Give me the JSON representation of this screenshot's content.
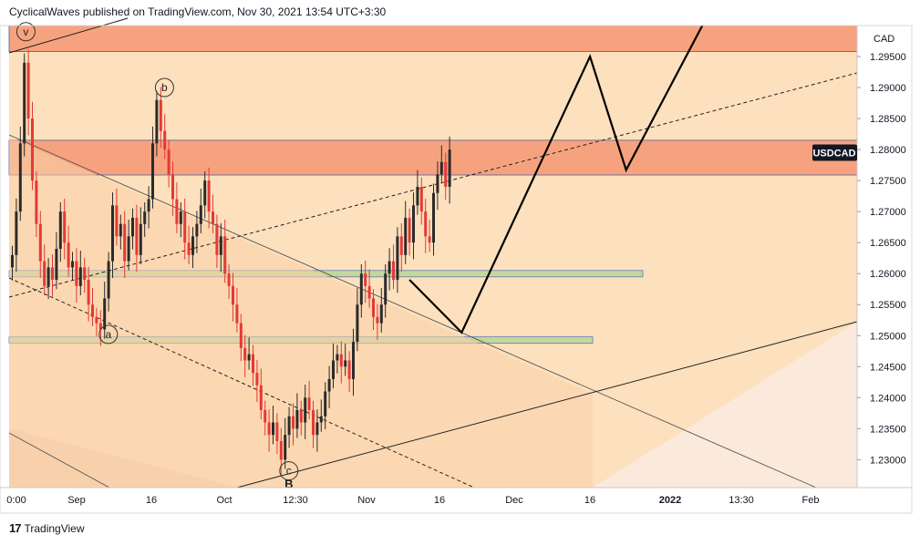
{
  "header": {
    "attribution": "CyclicalWaves published on TradingView.com, Nov 30, 2021 13:54 UTC+3:30"
  },
  "footer": {
    "brand": "TradingView",
    "logo_icon": "tradingview-logo-icon"
  },
  "colors": {
    "background_zone": "#fde0bd",
    "background_light": "#fbeadb",
    "resistance_zone": "#f7a27f",
    "support_zone": "#c6d79b",
    "candle_up": "#2b2b2b",
    "candle_down": "#e53935",
    "projection": "#000000"
  },
  "chart_data": {
    "type": "candlestick",
    "symbol_label": "USDCAD",
    "currency": "CAD",
    "last_price_label": "USDCAD",
    "y_ticks": [
      "1.29500",
      "1.29000",
      "1.28500",
      "1.28000",
      "1.27500",
      "1.27000",
      "1.26500",
      "1.26000",
      "1.25500",
      "1.25000",
      "1.24500",
      "1.24000",
      "1.23500",
      "1.23000"
    ],
    "y_tick_values": [
      1.295,
      1.29,
      1.285,
      1.28,
      1.275,
      1.27,
      1.265,
      1.26,
      1.255,
      1.25,
      1.245,
      1.24,
      1.235,
      1.23
    ],
    "x_ticks": [
      "0:00",
      "Sep",
      "16",
      "Oct",
      "12:30",
      "Nov",
      "16",
      "Dec",
      "16",
      "2022",
      "13:30",
      "Feb"
    ],
    "x_tick_bold": [
      false,
      false,
      false,
      false,
      false,
      false,
      false,
      false,
      false,
      true,
      false,
      false
    ],
    "ylim": [
      1.2255,
      1.3
    ],
    "price_path": [
      1.263,
      1.27,
      1.281,
      1.294,
      1.285,
      1.275,
      1.268,
      1.262,
      1.258,
      1.261,
      1.259,
      1.264,
      1.27,
      1.265,
      1.261,
      1.262,
      1.258,
      1.261,
      1.259,
      1.255,
      1.253,
      1.252,
      1.251,
      1.256,
      1.262,
      1.271,
      1.266,
      1.268,
      1.262,
      1.266,
      1.269,
      1.263,
      1.268,
      1.27,
      1.272,
      1.281,
      1.288,
      1.283,
      1.28,
      1.276,
      1.272,
      1.268,
      1.27,
      1.265,
      1.263,
      1.266,
      1.268,
      1.271,
      1.275,
      1.27,
      1.268,
      1.263,
      1.266,
      1.26,
      1.258,
      1.255,
      1.252,
      1.248,
      1.246,
      1.247,
      1.244,
      1.242,
      1.238,
      1.236,
      1.234,
      1.236,
      1.233,
      1.23,
      1.234,
      1.237,
      1.235,
      1.238,
      1.236,
      1.24,
      1.238,
      1.234,
      1.236,
      1.237,
      1.241,
      1.243,
      1.246,
      1.247,
      1.245,
      1.246,
      1.243,
      1.249,
      1.255,
      1.26,
      1.258,
      1.256,
      1.253,
      1.252,
      1.255,
      1.26,
      1.262,
      1.259,
      1.266,
      1.263,
      1.269,
      1.265,
      1.271,
      1.274,
      1.27,
      1.266,
      1.265,
      1.273,
      1.276,
      1.278,
      1.274,
      1.28
    ],
    "zones": [
      {
        "name": "resistance-top",
        "from": 1.2958,
        "to": 1.3,
        "color_key": "resistance_zone"
      },
      {
        "name": "resistance",
        "from": 1.2759,
        "to": 1.2815,
        "color_key": "resistance_zone"
      },
      {
        "name": "support-upper",
        "from": 1.2595,
        "to": 1.2605,
        "color_key": "support_zone"
      },
      {
        "name": "support-lower",
        "from": 1.2488,
        "to": 1.2498,
        "color_key": "support_zone"
      }
    ],
    "wave_labels": [
      {
        "text": "v",
        "bar": 1,
        "price": 1.299
      },
      {
        "text": "b",
        "bar": 36,
        "price": 1.29
      },
      {
        "text": "a",
        "bar": 22,
        "price": 1.2502
      },
      {
        "text": "c",
        "bar": 67,
        "price": 1.2282
      },
      {
        "text": "B",
        "bar": 67,
        "price": 1.226
      }
    ],
    "projection_path": [
      {
        "bar": 99,
        "price": 1.259
      },
      {
        "bar": 112,
        "price": 1.2505
      },
      {
        "bar": 144,
        "price": 1.295
      },
      {
        "bar": 153,
        "price": 1.2767
      },
      {
        "bar": 172,
        "price": 1.3
      }
    ]
  }
}
